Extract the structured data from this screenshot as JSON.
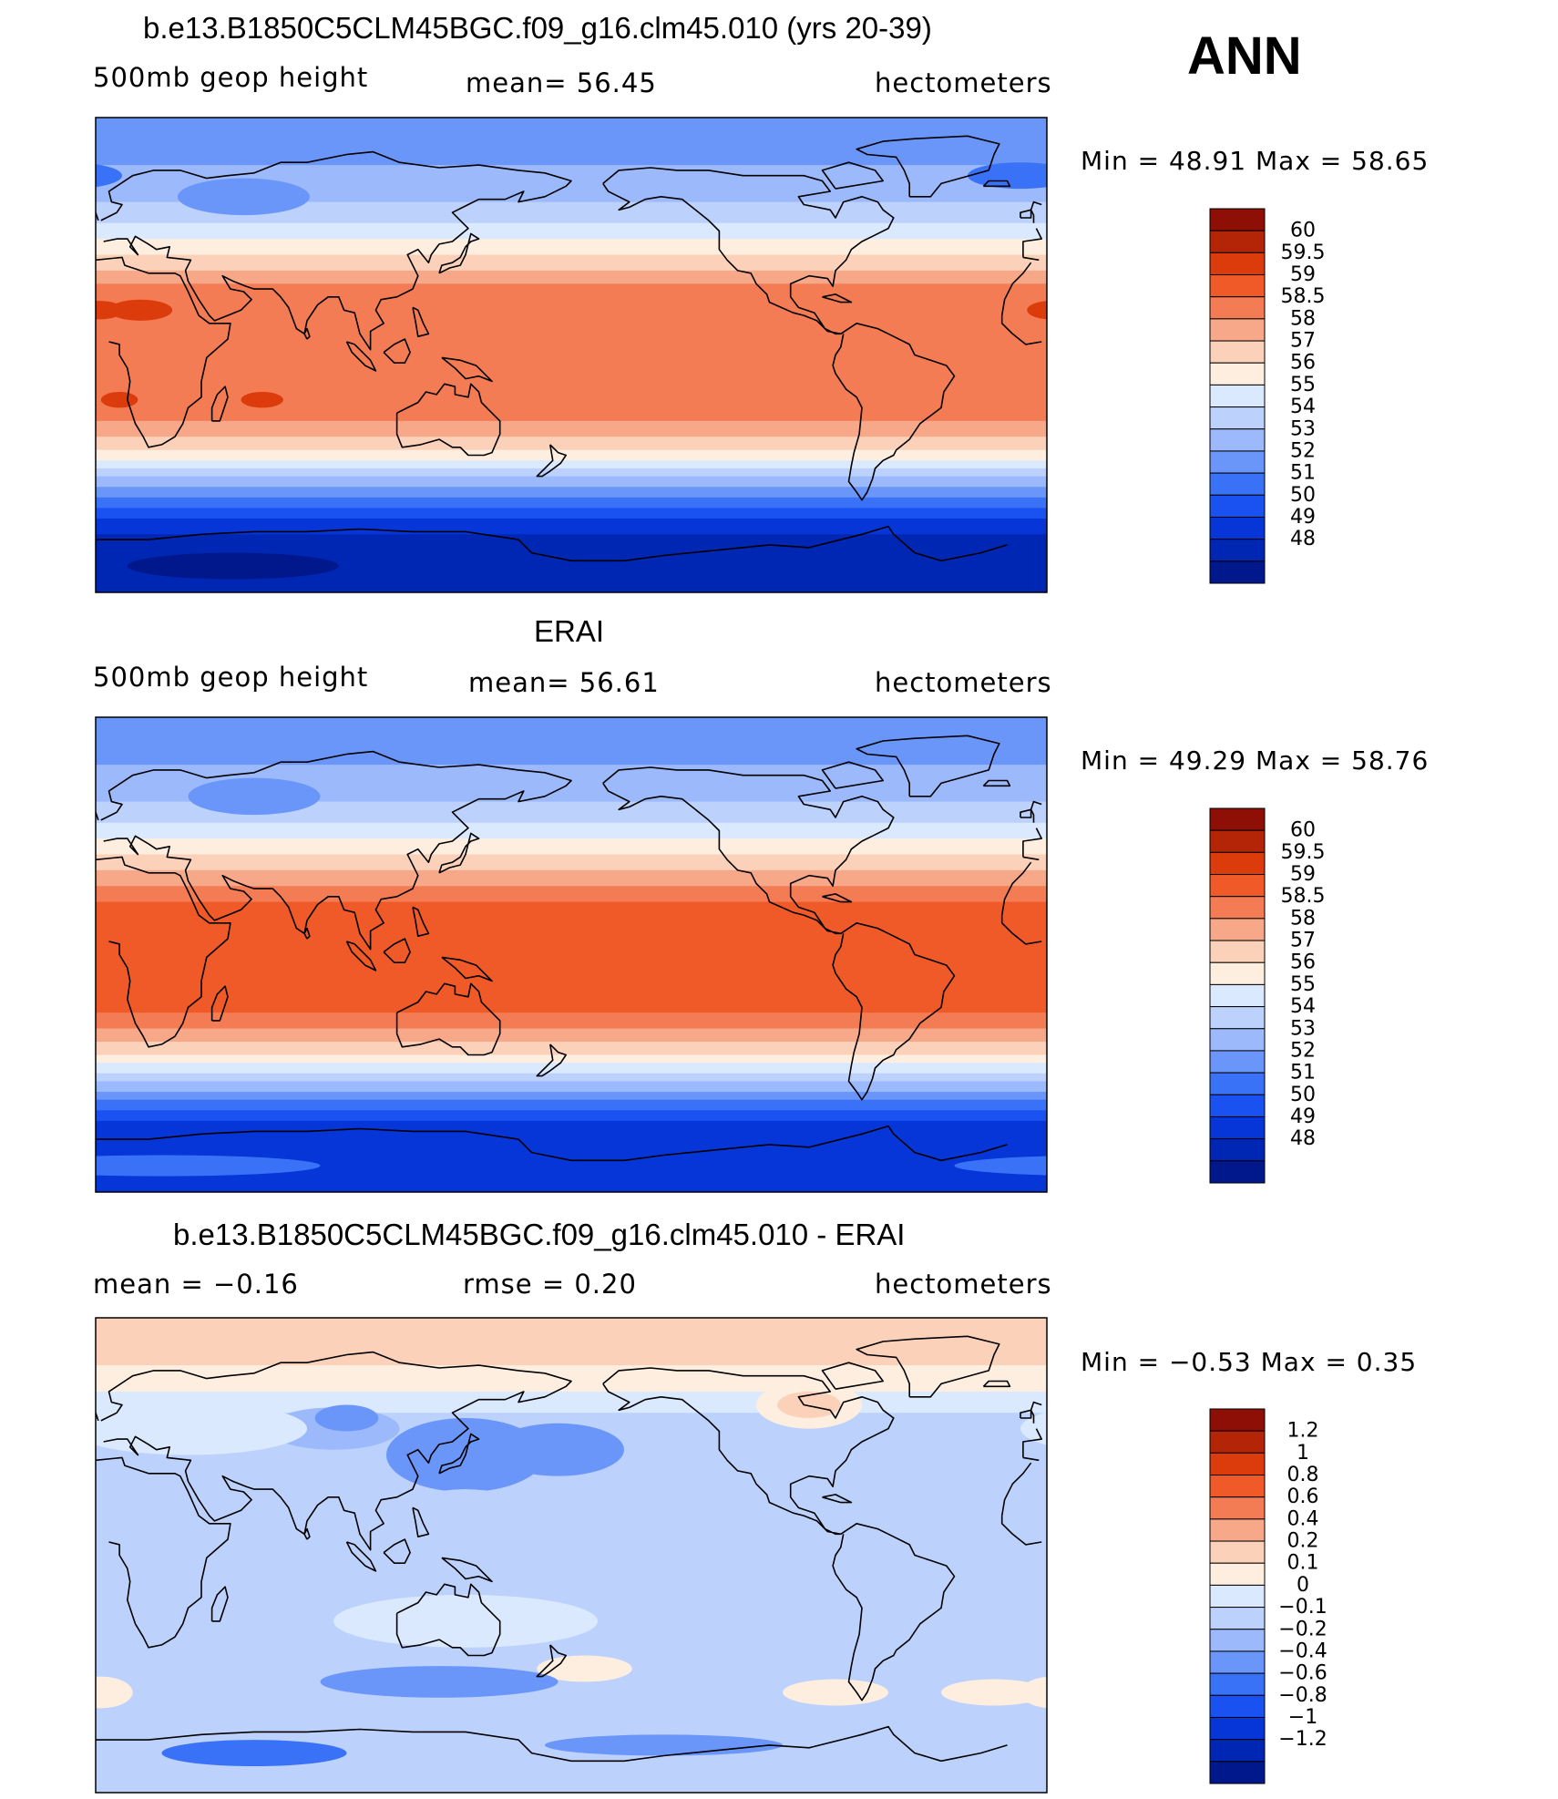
{
  "header": {
    "season": "ANN"
  },
  "panels": [
    {
      "title": "b.e13.B1850C5CLM45BGC.f09_g16.clm45.010 (yrs 20-39)",
      "left_text": "500mb  geop  height",
      "center_text": "mean=   56.45",
      "right_text": "hectometers",
      "min_max": "Min  =    48.91  Max  =    58.65",
      "colors": [
        "#00188c",
        "#0026b4",
        "#0635d8",
        "#1a52f2",
        "#3a72f7",
        "#6b96f9",
        "#9bb9fb",
        "#bcd2fd",
        "#dbe9fe",
        "#fdeee0",
        "#fbd1b9",
        "#f7a888",
        "#f47c54",
        "#f05a28",
        "#dc3c0c",
        "#b42508",
        "#8e0f06"
      ],
      "labels": [
        "60",
        "59.5",
        "59",
        "58.5",
        "58",
        "57",
        "56",
        "55",
        "54",
        "53",
        "52",
        "51",
        "50",
        "49",
        "48"
      ],
      "anomalies": [
        {
          "cx": 1.5,
          "cy": 17,
          "rx": 9,
          "ry": 3.5,
          "ci": 14
        },
        {
          "cx": 17,
          "cy": 17,
          "rx": 12,
          "ry": 4,
          "ci": 14
        },
        {
          "cx": 9,
          "cy": -17,
          "rx": 7,
          "ry": 3,
          "ci": 14
        },
        {
          "cx": 63,
          "cy": -17,
          "rx": 8,
          "ry": 3,
          "ci": 14
        },
        {
          "cx": 56,
          "cy": 60,
          "rx": 25,
          "ry": 7,
          "ci": 5
        },
        {
          "cx": -10,
          "cy": 68,
          "rx": 20,
          "ry": 5,
          "ci": 4
        },
        {
          "cx": 52,
          "cy": -80,
          "rx": 40,
          "ry": 5,
          "ci": 0
        }
      ]
    },
    {
      "title": "ERAI",
      "left_text": "500mb  geop  height",
      "center_text": "mean=   56.61",
      "right_text": "hectometers",
      "min_max": "Min  =    49.29  Max  =    58.76",
      "colors": [
        "#00188c",
        "#0026b4",
        "#0635d8",
        "#1a52f2",
        "#3a72f7",
        "#6b96f9",
        "#9bb9fb",
        "#bcd2fd",
        "#dbe9fe",
        "#fdeee0",
        "#fbd1b9",
        "#f7a888",
        "#f47c54",
        "#f05a28",
        "#dc3c0c",
        "#b42508",
        "#8e0f06"
      ],
      "labels": [
        "60",
        "59.5",
        "59",
        "58.5",
        "58",
        "57",
        "56",
        "55",
        "54",
        "53",
        "52",
        "51",
        "50",
        "49",
        "48"
      ],
      "anomalies": [
        {
          "cx": 60,
          "cy": 60,
          "rx": 25,
          "ry": 7,
          "ci": 5
        },
        {
          "cx": 25,
          "cy": -80,
          "rx": 60,
          "ry": 4,
          "ci": 4
        }
      ]
    },
    {
      "title": "b.e13.B1850C5CLM45BGC.f09_g16.clm45.010 - ERAI",
      "left_text": "mean  =    −0.16",
      "center_text": "rmse  =     0.20",
      "right_text": "hectometers",
      "min_max": "Min  =    −0.53  Max  =      0.35",
      "colors": [
        "#00188c",
        "#0026b4",
        "#0635d8",
        "#1a52f2",
        "#3a72f7",
        "#6b96f9",
        "#9bb9fb",
        "#bcd2fd",
        "#dbe9fe",
        "#fdeee0",
        "#fbd1b9",
        "#f7a888",
        "#f47c54",
        "#f05a28",
        "#dc3c0c",
        "#b42508",
        "#8e0f06"
      ],
      "labels": [
        "1.2",
        "1",
        "0.8",
        "0.6",
        "0.4",
        "0.2",
        "0.1",
        "0",
        "−0.1",
        "−0.2",
        "−0.4",
        "−0.6",
        "−0.8",
        "−1",
        "−1.2"
      ],
      "anomalies": [
        {
          "cx": 140,
          "cy": 38,
          "rx": 30,
          "ry": 14,
          "ci": 5
        },
        {
          "cx": 175,
          "cy": 40,
          "rx": 25,
          "ry": 10,
          "ci": 5
        },
        {
          "cx": 90,
          "cy": 48,
          "rx": 25,
          "ry": 8,
          "ci": 6
        },
        {
          "cx": 95,
          "cy": 52,
          "rx": 12,
          "ry": 5,
          "ci": 5
        },
        {
          "cx": 270,
          "cy": 57,
          "rx": 20,
          "ry": 9,
          "ci": 9
        },
        {
          "cx": 270,
          "cy": 57,
          "rx": 12,
          "ry": 5,
          "ci": 10
        },
        {
          "cx": 35,
          "cy": 48,
          "rx": 45,
          "ry": 10,
          "ci": 8
        },
        {
          "cx": 140,
          "cy": 0,
          "rx": 40,
          "ry": 25,
          "ci": 7
        },
        {
          "cx": 10,
          "cy": 0,
          "rx": 40,
          "ry": 25,
          "ci": 7
        },
        {
          "cx": 190,
          "cy": -12,
          "rx": 45,
          "ry": 14,
          "ci": 7
        },
        {
          "cx": 140,
          "cy": -25,
          "rx": 50,
          "ry": 10,
          "ci": 8
        },
        {
          "cx": 185,
          "cy": -43,
          "rx": 18,
          "ry": 5,
          "ci": 9
        },
        {
          "cx": 280,
          "cy": -52,
          "rx": 20,
          "ry": 5,
          "ci": 9
        },
        {
          "cx": 340,
          "cy": -52,
          "rx": 20,
          "ry": 5,
          "ci": 9
        },
        {
          "cx": 2,
          "cy": -52,
          "rx": 12,
          "ry": 6,
          "ci": 9
        },
        {
          "cx": 130,
          "cy": -48,
          "rx": 45,
          "ry": 6,
          "ci": 5
        },
        {
          "cx": 60,
          "cy": -75,
          "rx": 35,
          "ry": 5,
          "ci": 4
        },
        {
          "cx": 215,
          "cy": -72,
          "rx": 45,
          "ry": 4,
          "ci": 5
        }
      ]
    }
  ]
}
